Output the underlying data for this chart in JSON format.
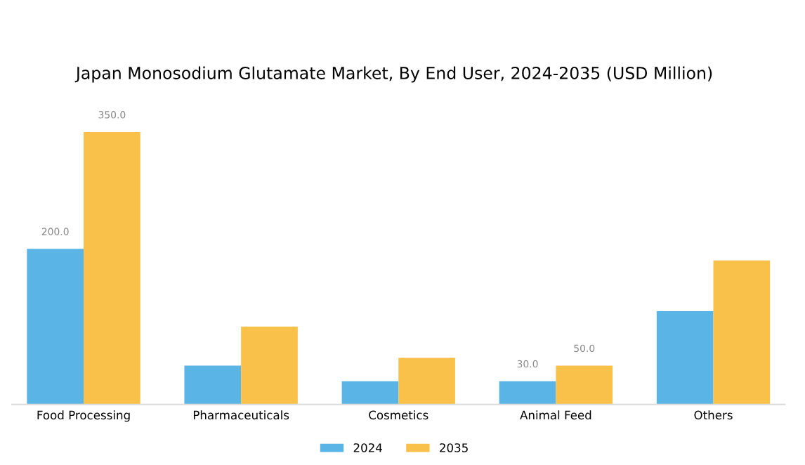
{
  "chart_data": {
    "type": "bar",
    "title": "Japan Monosodium Glutamate Market, By End User, 2024-2035 (USD Million)",
    "categories": [
      "Food Processing",
      "Pharmaceuticals",
      "Cosmetics",
      "Animal Feed",
      "Others"
    ],
    "series": [
      {
        "name": "2024",
        "color": "#5ab4e5",
        "values": [
          200,
          50,
          30,
          30,
          120
        ],
        "value_labels": [
          "200.0",
          null,
          null,
          "30.0",
          null
        ]
      },
      {
        "name": "2035",
        "color": "#f9c04a",
        "values": [
          350,
          100,
          60,
          50,
          185
        ],
        "value_labels": [
          "350.0",
          null,
          null,
          "50.0",
          null
        ]
      }
    ],
    "legend": "bottom",
    "grid": false
  }
}
